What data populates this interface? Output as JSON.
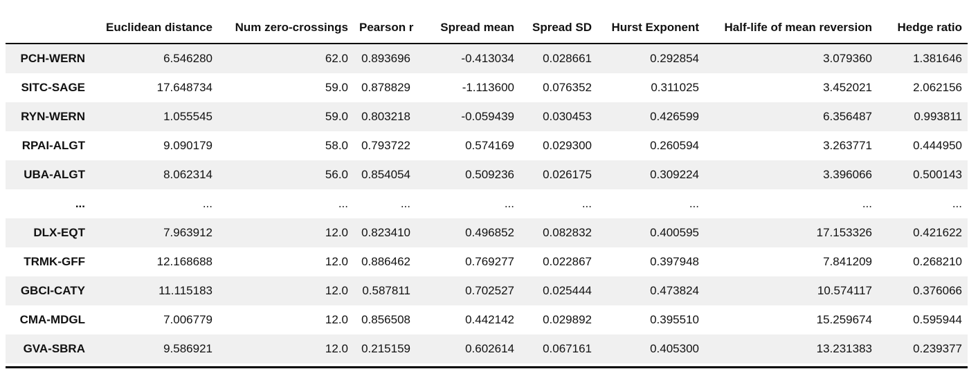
{
  "colors": {
    "stripe_row": "#f0f0f0",
    "rule": "#000000",
    "text": "#111111"
  },
  "chart_data": {
    "type": "table",
    "index_header": "",
    "columns": [
      "Euclidean distance",
      "Num zero-crossings",
      "Pearson r",
      "Spread mean",
      "Spread SD",
      "Hurst Exponent",
      "Half-life of mean reversion",
      "Hedge ratio"
    ],
    "rows": [
      {
        "index": "PCH-WERN",
        "values": [
          "6.546280",
          "62.0",
          "0.893696",
          "-0.413034",
          "0.028661",
          "0.292854",
          "3.079360",
          "1.381646"
        ]
      },
      {
        "index": "SITC-SAGE",
        "values": [
          "17.648734",
          "59.0",
          "0.878829",
          "-1.113600",
          "0.076352",
          "0.311025",
          "3.452021",
          "2.062156"
        ]
      },
      {
        "index": "RYN-WERN",
        "values": [
          "1.055545",
          "59.0",
          "0.803218",
          "-0.059439",
          "0.030453",
          "0.426599",
          "6.356487",
          "0.993811"
        ]
      },
      {
        "index": "RPAI-ALGT",
        "values": [
          "9.090179",
          "58.0",
          "0.793722",
          "0.574169",
          "0.029300",
          "0.260594",
          "3.263771",
          "0.444950"
        ]
      },
      {
        "index": "UBA-ALGT",
        "values": [
          "8.062314",
          "56.0",
          "0.854054",
          "0.509236",
          "0.026175",
          "0.309224",
          "3.396066",
          "0.500143"
        ]
      },
      {
        "index": "...",
        "values": [
          "...",
          "...",
          "...",
          "...",
          "...",
          "...",
          "...",
          "..."
        ]
      },
      {
        "index": "DLX-EQT",
        "values": [
          "7.963912",
          "12.0",
          "0.823410",
          "0.496852",
          "0.082832",
          "0.400595",
          "17.153326",
          "0.421622"
        ]
      },
      {
        "index": "TRMK-GFF",
        "values": [
          "12.168688",
          "12.0",
          "0.886462",
          "0.769277",
          "0.022867",
          "0.397948",
          "7.841209",
          "0.268210"
        ]
      },
      {
        "index": "GBCI-CATY",
        "values": [
          "11.115183",
          "12.0",
          "0.587811",
          "0.702527",
          "0.025444",
          "0.473824",
          "10.574117",
          "0.376066"
        ]
      },
      {
        "index": "CMA-MDGL",
        "values": [
          "7.006779",
          "12.0",
          "0.856508",
          "0.442142",
          "0.029892",
          "0.395510",
          "15.259674",
          "0.595944"
        ]
      },
      {
        "index": "GVA-SBRA",
        "values": [
          "9.586921",
          "12.0",
          "0.215159",
          "0.602614",
          "0.067161",
          "0.405300",
          "13.231383",
          "0.239377"
        ]
      }
    ]
  }
}
